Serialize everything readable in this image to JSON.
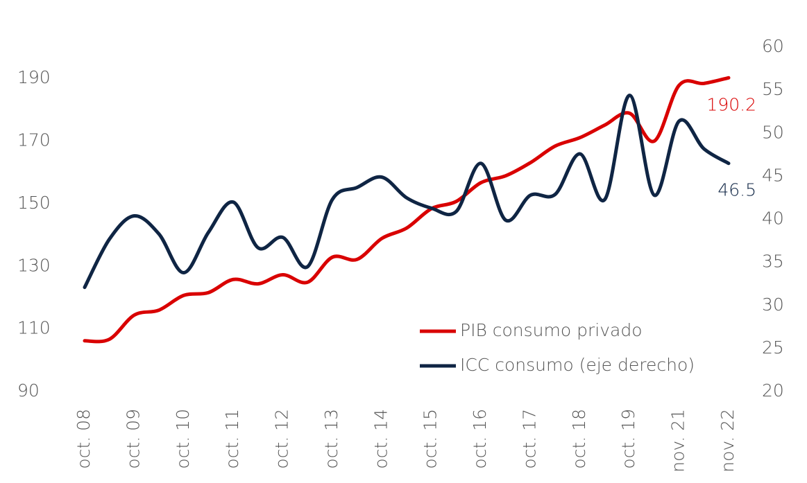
{
  "chart_data": {
    "type": "line",
    "categories": [
      "oct. 08",
      null,
      "oct. 09",
      null,
      "oct. 10",
      null,
      "oct. 11",
      null,
      "oct. 12",
      null,
      "oct. 13",
      null,
      "oct. 14",
      null,
      "oct. 15",
      null,
      "oct. 16",
      null,
      "oct. 17",
      null,
      "oct. 18",
      null,
      "oct. 19",
      null,
      "nov. 21",
      null,
      "nov. 22"
    ],
    "series": [
      {
        "name": "PIB consumo privado",
        "color": "#d90000",
        "axis": "y",
        "values": [
          106.2,
          106.7,
          114.4,
          116,
          120.7,
          121.6,
          125.8,
          124.4,
          127.3,
          124.9,
          132.9,
          132.2,
          138.9,
          142.2,
          148.4,
          150.7,
          156.7,
          158.9,
          163.1,
          168.4,
          171.1,
          175.1,
          178.9,
          170,
          187.8,
          188.4,
          190.2
        ]
      },
      {
        "name": "ICC consumo (eje derecho)",
        "color": "#0f2544",
        "axis": "y2",
        "values": [
          32.1,
          37.7,
          40.4,
          38.3,
          33.8,
          38.5,
          42,
          36.7,
          37.9,
          34.5,
          42.3,
          43.7,
          44.9,
          42.5,
          41.3,
          40.9,
          46.5,
          39.9,
          42.8,
          42.9,
          47.6,
          42.3,
          54.4,
          42.8,
          51.4,
          48.2,
          46.5
        ]
      }
    ],
    "ylim": [
      90,
      200
    ],
    "yticks": [
      90,
      110,
      130,
      150,
      170,
      190
    ],
    "y2lim": [
      20,
      60
    ],
    "y2ticks": [
      20,
      25,
      30,
      35,
      40,
      45,
      50,
      55,
      60
    ],
    "grid": false,
    "legend": "lower right"
  }
}
